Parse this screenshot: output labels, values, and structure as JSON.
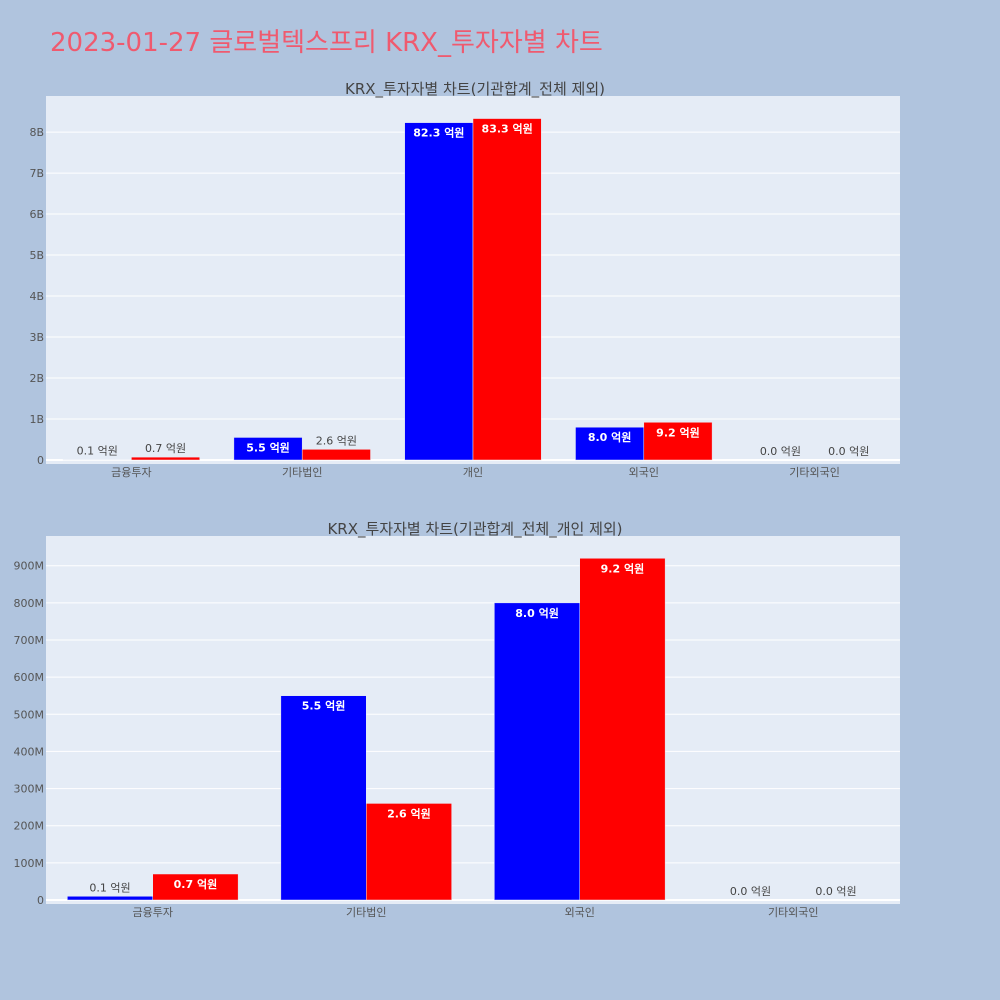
{
  "page": {
    "title": "2023-01-27 글로벌텍스프리 KRX_투자자별 차트"
  },
  "colors": {
    "background": "#b0c4de",
    "plot_background": "#e5ecf6",
    "grid": "#ffffff",
    "title": "#ef5a6f",
    "series_a": "#0000ff",
    "series_b": "#ff0000"
  },
  "chart_data": [
    {
      "type": "bar",
      "title": "KRX_투자자별 차트(기관합계_전체 제외)",
      "categories": [
        "금융투자",
        "기타법인",
        "개인",
        "외국인",
        "기타외국인"
      ],
      "series": [
        {
          "color": "#0000ff",
          "values": [
            10000000,
            550000000,
            8230000000,
            800000000,
            0
          ],
          "labels": [
            "0.1 억원",
            "5.5 억원",
            "82.3 억원",
            "8.0 억원",
            "0.0 억원"
          ]
        },
        {
          "color": "#ff0000",
          "values": [
            70000000,
            260000000,
            8330000000,
            920000000,
            0
          ],
          "labels": [
            "0.7 억원",
            "2.6 억원",
            "83.3 억원",
            "9.2 억원",
            "0.0 억원"
          ]
        }
      ],
      "ylim": [
        0,
        8880000000
      ],
      "yticks": [
        0,
        1000000000,
        2000000000,
        3000000000,
        4000000000,
        5000000000,
        6000000000,
        7000000000,
        8000000000
      ],
      "ytick_labels": [
        "0",
        "1B",
        "2B",
        "3B",
        "4B",
        "5B",
        "6B",
        "7B",
        "8B"
      ],
      "grid": true
    },
    {
      "type": "bar",
      "title": "KRX_투자자별 차트(기관합계_전체_개인 제외)",
      "categories": [
        "금융투자",
        "기타법인",
        "외국인",
        "기타외국인"
      ],
      "series": [
        {
          "color": "#0000ff",
          "values": [
            10000000,
            550000000,
            800000000,
            0
          ],
          "labels": [
            "0.1 억원",
            "5.5 억원",
            "8.0 억원",
            "0.0 억원"
          ]
        },
        {
          "color": "#ff0000",
          "values": [
            70000000,
            260000000,
            920000000,
            0
          ],
          "labels": [
            "0.7 억원",
            "2.6 억원",
            "9.2 억원",
            "0.0 억원"
          ]
        }
      ],
      "ylim": [
        0,
        980000000
      ],
      "yticks": [
        0,
        100000000,
        200000000,
        300000000,
        400000000,
        500000000,
        600000000,
        700000000,
        800000000,
        900000000
      ],
      "ytick_labels": [
        "0",
        "100M",
        "200M",
        "300M",
        "400M",
        "500M",
        "600M",
        "700M",
        "800M",
        "900M"
      ],
      "grid": true
    }
  ]
}
